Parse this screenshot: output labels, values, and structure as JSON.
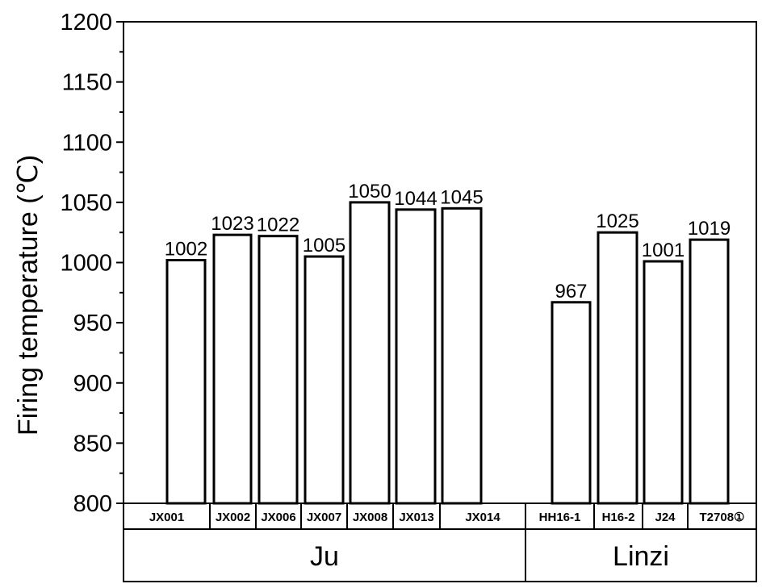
{
  "chart_data": {
    "type": "bar",
    "ylabel": "Firing temperature (℃)",
    "ylim": [
      800,
      1200
    ],
    "yticks": [
      800,
      850,
      900,
      950,
      1000,
      1050,
      1100,
      1150,
      1200
    ],
    "grid": false,
    "categories": [
      "JX001",
      "JX002",
      "JX006",
      "JX007",
      "JX008",
      "JX013",
      "JX014",
      "HH16-1",
      "H16-2",
      "J24",
      "T2708①"
    ],
    "values": [
      1002,
      1023,
      1022,
      1005,
      1050,
      1044,
      1045,
      967,
      1025,
      1001,
      1019
    ],
    "data_labels": [
      "1002",
      "1023",
      "1022",
      "1005",
      "1050",
      "1044",
      "1045",
      "967",
      "1025",
      "1001",
      "1019"
    ],
    "groups": [
      {
        "label": "Ju",
        "members": [
          "JX001",
          "JX002",
          "JX006",
          "JX007",
          "JX008",
          "JX013",
          "JX014"
        ]
      },
      {
        "label": "Linzi",
        "members": [
          "HH16-1",
          "H16-2",
          "J24",
          "T2708①"
        ]
      }
    ],
    "bar_fill": "#ffffff",
    "bar_stroke": "#000000"
  }
}
